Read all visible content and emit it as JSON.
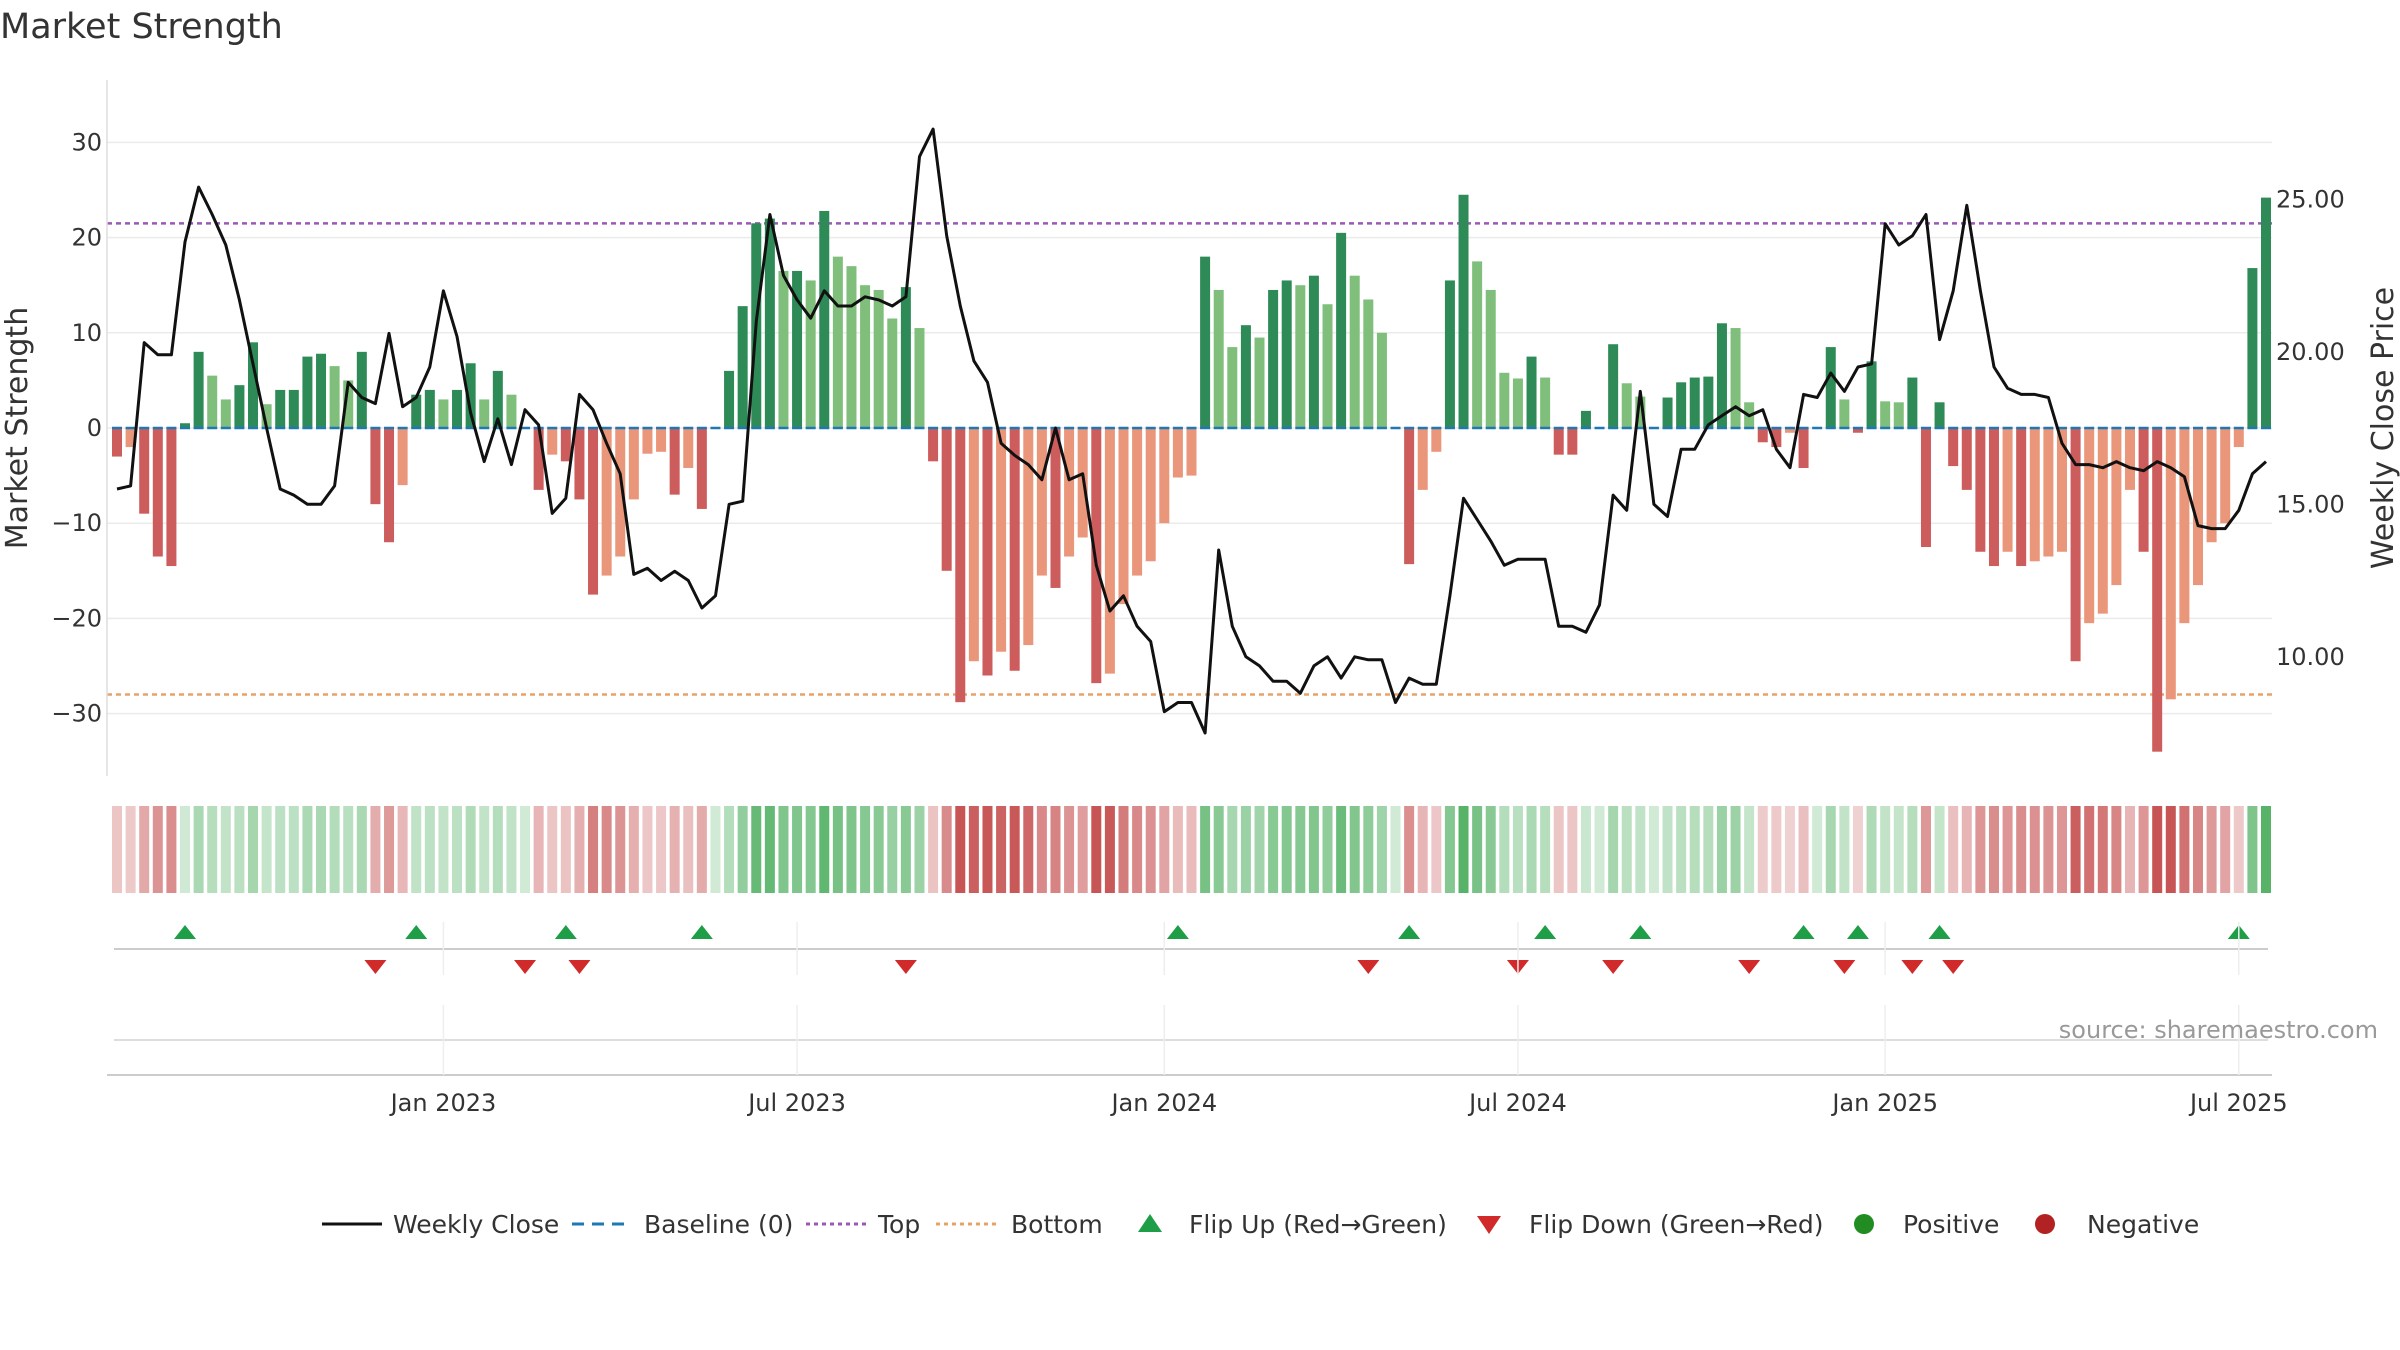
{
  "chart_data": {
    "type": "bar",
    "title": "Market Strength",
    "ylabel": "Market Strength",
    "y2label": "Weekly Close Price",
    "ylim": [
      -36.5,
      36.5
    ],
    "y2lim": [
      6.2,
      27.8
    ],
    "yticks": [
      30,
      20,
      10,
      0,
      -10,
      -20,
      -30
    ],
    "ytick_labels": [
      "30",
      "20",
      "10",
      "0",
      "−10",
      "−20",
      "−30"
    ],
    "y2ticks": [
      25,
      20,
      15,
      10
    ],
    "y2tick_labels": [
      "25.00",
      "20.00",
      "15.00",
      "10.00"
    ],
    "xticks": [
      {
        "label": "Jan 2023",
        "week": 24
      },
      {
        "label": "Jul 2023",
        "week": 50
      },
      {
        "label": "Jan 2024",
        "week": 77
      },
      {
        "label": "Jul 2024",
        "week": 103
      },
      {
        "label": "Jan 2025",
        "week": 130
      },
      {
        "label": "Jul 2025",
        "week": 156
      }
    ],
    "first_week": "2022-08-01",
    "top_line": 21.5,
    "bottom_line": -28,
    "strength": [
      -3,
      -2,
      -9,
      -13.5,
      -14.5,
      0.5,
      8,
      5.5,
      3,
      4.5,
      9,
      2.5,
      4,
      4,
      7.5,
      7.8,
      6.5,
      5,
      8,
      -8,
      -12,
      -6,
      3.5,
      4,
      3,
      4,
      6.8,
      3,
      6,
      3.5,
      0,
      -6.5,
      -2.8,
      -3.5,
      -7.5,
      -17.5,
      -15.5,
      -13.5,
      -7.5,
      -2.7,
      -2.5,
      -7,
      -4.2,
      -8.5,
      0,
      6,
      12.8,
      21.5,
      22,
      16.5,
      16.5,
      15.5,
      22.8,
      18,
      17,
      15,
      14.5,
      11.5,
      14.8,
      10.5,
      -3.5,
      -15,
      -28.8,
      -24.5,
      -26,
      -23.5,
      -25.5,
      -22.8,
      -15.5,
      -16.8,
      -13.5,
      -11.5,
      -26.8,
      -25.8,
      -18.5,
      -15.5,
      -14,
      -10,
      -5.2,
      -5,
      18,
      14.5,
      8.5,
      10.8,
      9.5,
      14.5,
      15.5,
      15,
      16,
      13,
      20.5,
      16,
      13.5,
      10,
      0,
      -14.3,
      -6.5,
      -2.5,
      15.5,
      24.5,
      17.5,
      14.5,
      5.8,
      5.2,
      7.5,
      5.3,
      -2.8,
      -2.8,
      1.8,
      0,
      8.8,
      4.7,
      3.3,
      0,
      3.2,
      4.8,
      5.3,
      5.4,
      11,
      10.5,
      2.7,
      -1.5,
      -2,
      -0.5,
      -4.2,
      0,
      8.5,
      3,
      -0.5,
      7,
      2.8,
      2.7,
      5.3,
      -12.5,
      2.7,
      -4,
      -6.5,
      -13,
      -14.5,
      -13,
      -14.5,
      -14,
      -13.5,
      -13,
      -24.5,
      -20.5,
      -19.5,
      -16.5,
      -6.5,
      -13,
      -34,
      -28.5,
      -20.5,
      -16.5,
      -12,
      -10,
      -2,
      16.8,
      24.2
    ],
    "weekly_close": [
      15.5,
      15.6,
      20.3,
      19.9,
      19.9,
      23.6,
      25.4,
      24.5,
      23.5,
      21.7,
      19.6,
      17.5,
      15.5,
      15.3,
      15,
      15,
      15.6,
      19,
      18.5,
      18.3,
      20.6,
      18.2,
      18.5,
      19.5,
      22,
      20.5,
      18,
      16.4,
      17.8,
      16.3,
      18.1,
      17.6,
      14.7,
      15.2,
      18.6,
      18.1,
      17,
      16,
      12.7,
      12.9,
      12.5,
      12.8,
      12.5,
      11.6,
      12,
      15,
      15.1,
      21,
      24.5,
      22.5,
      21.7,
      21.1,
      22,
      21.5,
      21.5,
      21.8,
      21.7,
      21.5,
      21.8,
      26.4,
      27.3,
      23.8,
      21.5,
      19.7,
      19,
      17,
      16.6,
      16.3,
      15.8,
      17.5,
      15.8,
      16,
      13,
      11.5,
      12,
      11,
      10.5,
      8.2,
      8.5,
      8.5,
      7.5,
      13.5,
      11,
      10,
      9.7,
      9.2,
      9.2,
      8.8,
      9.7,
      10,
      9.3,
      10,
      9.9,
      9.9,
      8.5,
      9.3,
      9.1,
      9.1,
      12,
      15.2,
      14.5,
      13.8,
      13,
      13.2,
      13.2,
      13.2,
      11,
      11,
      10.8,
      11.7,
      15.3,
      14.8,
      18.7,
      15,
      14.6,
      16.8,
      16.8,
      17.6,
      17.9,
      18.2,
      17.9,
      18.1,
      16.8,
      16.2,
      18.6,
      18.5,
      19.3,
      18.7,
      19.5,
      19.6,
      24.2,
      23.5,
      23.8,
      24.5,
      20.4,
      22,
      24.8,
      22,
      19.5,
      18.8,
      18.6,
      18.6,
      18.5,
      17,
      16.3,
      16.3,
      16.2,
      16.4,
      16.2,
      16.1,
      16.4,
      16.2,
      15.9,
      14.3,
      14.2,
      14.2,
      14.8,
      16,
      16.4
    ],
    "flip_up_weeks": [
      5,
      22,
      33,
      43,
      78,
      95,
      105,
      112,
      124,
      128,
      134,
      156
    ],
    "flip_down_weeks": [
      19,
      30,
      34,
      58,
      92,
      103,
      110,
      120,
      127,
      132,
      135
    ],
    "series": [
      {
        "name": "Weekly Close",
        "color": "#111111"
      },
      {
        "name": "Baseline (0)",
        "color": "#1f77b4"
      },
      {
        "name": "Top",
        "color": "#9b59b6"
      },
      {
        "name": "Bottom",
        "color": "#e6a468"
      },
      {
        "name": "Flip Up (Red→Green)",
        "color": "#1e9e47"
      },
      {
        "name": "Flip Down (Green→Red)",
        "color": "#d12a2a"
      },
      {
        "name": "Positive",
        "color": "#228b22"
      },
      {
        "name": "Negative",
        "color": "#b22222"
      }
    ],
    "source": "source: sharemaestro.com"
  }
}
